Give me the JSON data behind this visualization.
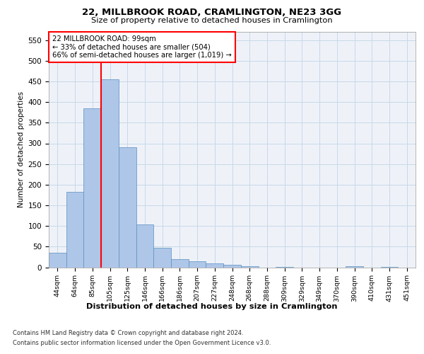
{
  "title1": "22, MILLBROOK ROAD, CRAMLINGTON, NE23 3GG",
  "title2": "Size of property relative to detached houses in Cramlington",
  "xlabel": "Distribution of detached houses by size in Cramlington",
  "ylabel": "Number of detached properties",
  "footnote1": "Contains HM Land Registry data © Crown copyright and database right 2024.",
  "footnote2": "Contains public sector information licensed under the Open Government Licence v3.0.",
  "annotation_line1": "22 MILLBROOK ROAD: 99sqm",
  "annotation_line2": "← 33% of detached houses are smaller (504)",
  "annotation_line3": "66% of semi-detached houses are larger (1,019) →",
  "bin_labels": [
    "44sqm",
    "64sqm",
    "85sqm",
    "105sqm",
    "125sqm",
    "146sqm",
    "166sqm",
    "186sqm",
    "207sqm",
    "227sqm",
    "248sqm",
    "268sqm",
    "288sqm",
    "309sqm",
    "329sqm",
    "349sqm",
    "370sqm",
    "390sqm",
    "410sqm",
    "431sqm",
    "451sqm"
  ],
  "bar_values": [
    35,
    183,
    385,
    455,
    290,
    103,
    48,
    20,
    15,
    10,
    6,
    2,
    0,
    1,
    0,
    0,
    0,
    2,
    0,
    1,
    0
  ],
  "bar_color": "#aec6e8",
  "bar_edge_color": "#5a8fc0",
  "red_line_x": 2.5,
  "ylim": [
    0,
    570
  ],
  "yticks": [
    0,
    50,
    100,
    150,
    200,
    250,
    300,
    350,
    400,
    450,
    500,
    550
  ],
  "grid_color": "#c8d8e8",
  "annotation_box_color": "#ff0000",
  "background_color": "#eef2f8"
}
